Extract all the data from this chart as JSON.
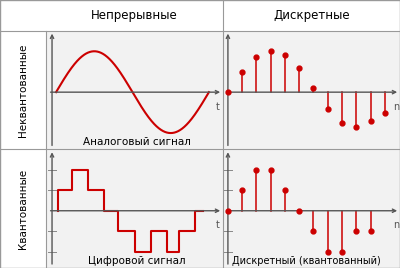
{
  "header_bg": "#f5f0c8",
  "row_label_bg": "#ccdcf0",
  "plot_bg_light": "#f2f2f2",
  "border_color": "#999999",
  "line_color": "#cc0000",
  "axis_color": "#555555",
  "text_color": "#000000",
  "col_headers": [
    "Непрерывные",
    "Дискретные"
  ],
  "row_headers": [
    "Неквантованные",
    "Квантованные"
  ],
  "captions": [
    "Аналоговый сигнал",
    "Цифровой сигнал",
    "Дискретный (квантованный)"
  ],
  "header_fontsize": 8.5,
  "row_fontsize": 7.5,
  "caption_fontsize": 7.5,
  "stem_top_row": [
    0,
    0.5,
    0.85,
    1.0,
    0.9,
    0.6,
    0.1,
    -0.4,
    -0.75,
    -0.85,
    -0.7,
    -0.5
  ],
  "stem_bottom_row": [
    0,
    0.5,
    1.0,
    1.0,
    0.5,
    0.0,
    -0.5,
    -1.0,
    -1.0,
    -0.5,
    -0.5
  ],
  "digital_signal_x": [
    0.3,
    0.3,
    1.0,
    1.0,
    1.8,
    1.8,
    2.6,
    2.6,
    3.3,
    3.3,
    4.1,
    4.1,
    4.9,
    4.9,
    5.7,
    5.7,
    6.3,
    6.3,
    7.1,
    7.1,
    7.5
  ],
  "digital_signal_y": [
    0.0,
    0.5,
    0.5,
    1.0,
    1.0,
    0.5,
    0.5,
    0.0,
    0.0,
    -0.5,
    -0.5,
    -1.0,
    -1.0,
    -0.5,
    -0.5,
    -1.0,
    -1.0,
    -0.5,
    -0.5,
    0.0,
    0.0
  ]
}
